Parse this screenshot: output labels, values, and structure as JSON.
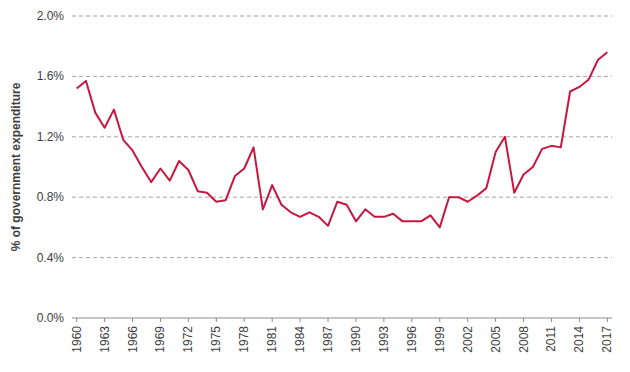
{
  "chart_data": {
    "type": "line",
    "y_label": "% of government expenditure",
    "categories": [
      "1960",
      null,
      null,
      "1963",
      null,
      null,
      "1966",
      null,
      null,
      "1969",
      null,
      null,
      "1972",
      null,
      null,
      "1975",
      null,
      null,
      "1978",
      null,
      null,
      "1981",
      null,
      null,
      "1984",
      null,
      null,
      "1987",
      null,
      null,
      "1990",
      null,
      null,
      "1993",
      null,
      null,
      "1996",
      null,
      null,
      "1999",
      null,
      null,
      "2002",
      null,
      null,
      "2005",
      null,
      null,
      "2008",
      null,
      null,
      "2011",
      null,
      null,
      "2014",
      null,
      null,
      "2017"
    ],
    "values": [
      1.52,
      1.57,
      1.36,
      1.26,
      1.38,
      1.18,
      1.11,
      1.0,
      0.9,
      0.99,
      0.91,
      1.04,
      0.98,
      0.84,
      0.83,
      0.77,
      0.78,
      0.94,
      0.99,
      1.13,
      0.72,
      0.88,
      0.75,
      0.7,
      0.67,
      0.7,
      0.67,
      0.61,
      0.77,
      0.75,
      0.64,
      0.72,
      0.67,
      0.67,
      0.69,
      0.64,
      0.64,
      0.64,
      0.68,
      0.6,
      0.8,
      0.8,
      0.77,
      0.81,
      0.86,
      1.1,
      1.2,
      0.83,
      0.95,
      1.0,
      1.12,
      1.14,
      1.13,
      1.5,
      1.53,
      1.58,
      1.71,
      1.76
    ],
    "color": "#c8173f",
    "ylim": [
      0,
      2.0
    ],
    "yticks": [
      {
        "value": 0,
        "label": "0.0%"
      },
      {
        "value": 0.4,
        "label": "0.4%"
      },
      {
        "value": 0.8,
        "label": "0.8%"
      },
      {
        "value": 1.2,
        "label": "1.2%"
      },
      {
        "value": 1.6,
        "label": "1.6%"
      },
      {
        "value": 2.0,
        "label": "2.0%"
      }
    ],
    "grid": true
  }
}
